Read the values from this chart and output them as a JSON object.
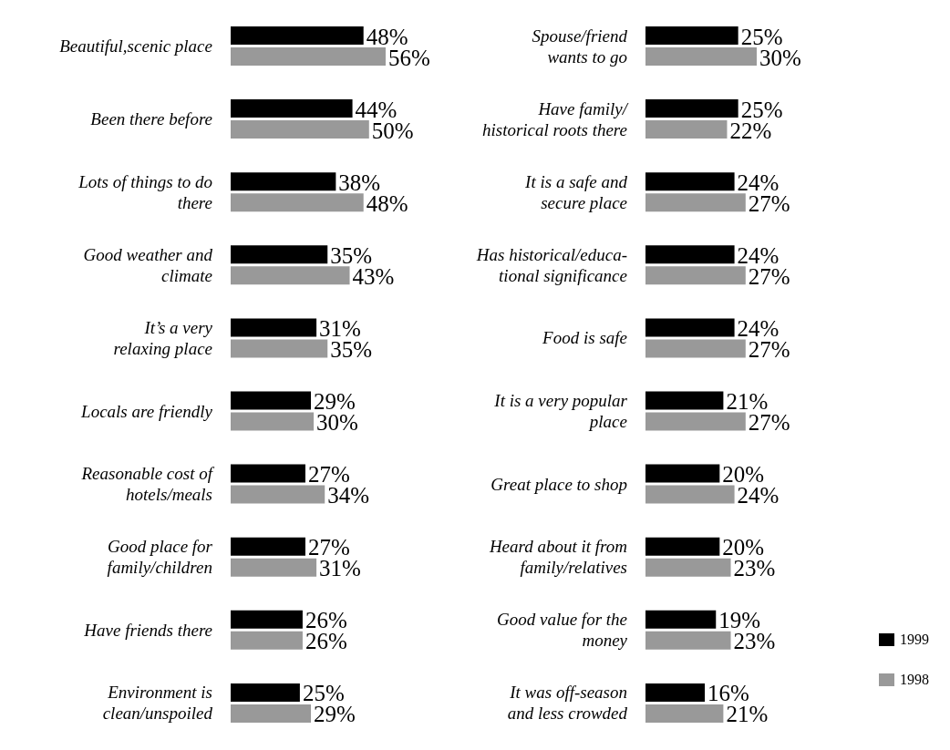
{
  "chart_data": [
    {
      "type": "bar",
      "orientation": "horizontal",
      "legend": false,
      "categories": [
        "Beautiful,scenic place",
        "Been there before",
        "Lots of things to do\nthere",
        "Good weather and\nclimate",
        "It’s a very\nrelaxing place",
        "Locals are friendly",
        "Reasonable cost of\nhotels/meals",
        "Good place for\nfamily/children",
        "Have friends there",
        "Environment is\nclean/unspoiled"
      ],
      "series": [
        {
          "color": "#000000",
          "values": [
            48,
            44,
            38,
            35,
            31,
            29,
            27,
            27,
            26,
            25
          ],
          "value_labels": [
            "48%",
            "44%",
            "38%",
            "35%",
            "31%",
            "29%",
            "27%",
            "27%",
            "26%",
            "25%"
          ]
        },
        {
          "color": "#999999",
          "values": [
            56,
            50,
            48,
            43,
            35,
            30,
            34,
            31,
            26,
            29
          ],
          "value_labels": [
            "56%",
            "50%",
            "48%",
            "43%",
            "35%",
            "30%",
            "34%",
            "31%",
            "26%",
            "29%"
          ]
        }
      ]
    },
    {
      "type": "bar",
      "orientation": "horizontal",
      "legend": "bottom right",
      "categories": [
        "Spouse/friend\nwants to go",
        "Have family/\nhistorical roots there",
        "It is a safe and\nsecure place",
        "Has historical/educa-\ntional significance",
        "Food is safe",
        "It is a very popular\nplace",
        "Great place to shop",
        "Heard about it from\nfamily/relatives",
        "Good value for the\nmoney",
        "It was off-season\nand less crowded"
      ],
      "series": [
        {
          "name": "1999",
          "color": "#000000",
          "values": [
            25,
            25,
            24,
            24,
            24,
            21,
            20,
            20,
            19,
            16
          ],
          "value_labels": [
            "25%",
            "25%",
            "24%",
            "24%",
            "24%",
            "21%",
            "20%",
            "20%",
            "19%",
            "16%"
          ]
        },
        {
          "name": "1998",
          "color": "#999999",
          "values": [
            30,
            22,
            27,
            27,
            27,
            27,
            24,
            23,
            23,
            21
          ],
          "value_labels": [
            "30%",
            "22%",
            "27%",
            "27%",
            "27%",
            "27%",
            "24%",
            "23%",
            "23%",
            "21%"
          ]
        }
      ]
    }
  ]
}
